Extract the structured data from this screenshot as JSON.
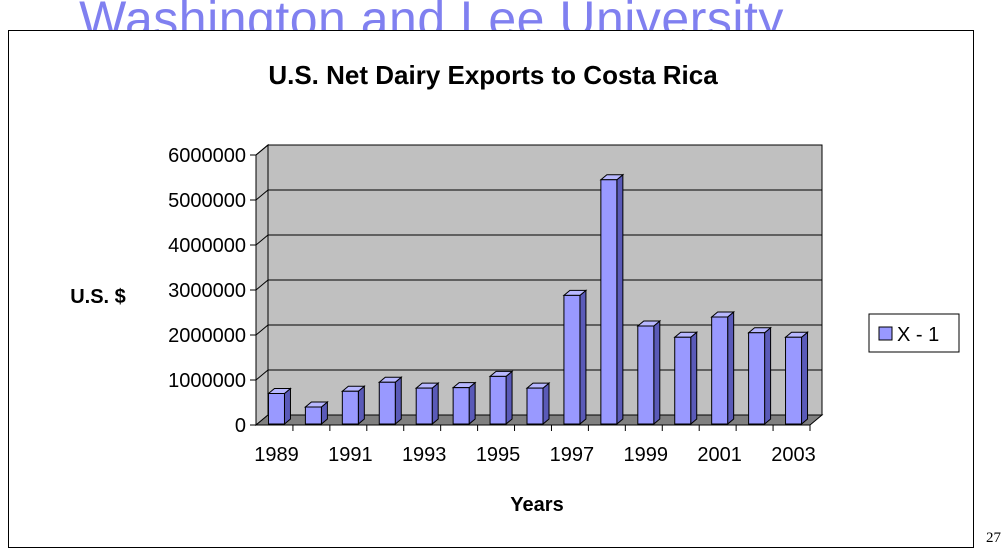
{
  "watermark": "Washington and Lee University",
  "page_number": "27",
  "chart_data": {
    "type": "bar",
    "title": "U.S. Net Dairy Exports to Costa Rica",
    "xlabel": "Years",
    "ylabel": "U.S. $",
    "categories": [
      "1989",
      "1990",
      "1991",
      "1992",
      "1993",
      "1994",
      "1995",
      "1996",
      "1997",
      "1998",
      "1999",
      "2000",
      "2001",
      "2002",
      "2003"
    ],
    "x_tick_labels": [
      "1989",
      "1991",
      "1993",
      "1995",
      "1997",
      "1999",
      "2001",
      "2003"
    ],
    "y_ticks": [
      0,
      1000000,
      2000000,
      3000000,
      4000000,
      5000000,
      6000000
    ],
    "ylim": [
      0,
      6000000
    ],
    "series": [
      {
        "name": "X - 1",
        "color": "#9999ff",
        "values": [
          700000,
          400000,
          750000,
          950000,
          820000,
          830000,
          1080000,
          820000,
          2880000,
          5450000,
          2200000,
          1950000,
          2400000,
          2050000,
          1950000
        ]
      }
    ],
    "grid": true,
    "legend_position": "right",
    "wall_color": "#c0c0c0",
    "floor_color": "#808080"
  }
}
